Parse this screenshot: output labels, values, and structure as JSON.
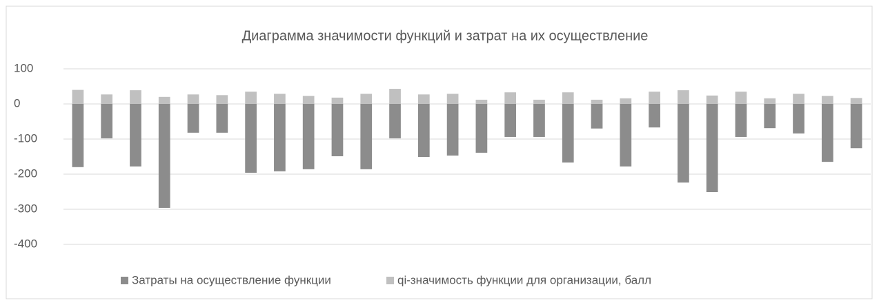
{
  "chart_data": {
    "type": "bar",
    "title": "Диаграмма значимости функций и затрат на их осуществление",
    "categories": [
      null,
      null,
      null,
      null,
      null,
      null,
      null,
      null,
      null,
      null,
      null,
      null,
      null,
      null,
      null,
      null,
      null,
      null,
      null,
      null,
      null,
      null,
      null,
      null,
      null,
      null,
      null,
      null
    ],
    "series": [
      {
        "name": "Затраты на осуществление функции",
        "color": "#8c8c8c",
        "values": [
          -180,
          -98,
          -178,
          -296,
          -82,
          -82,
          -196,
          -192,
          -186,
          -149,
          -186,
          -98,
          -151,
          -147,
          -139,
          -94,
          -94,
          -167,
          -70,
          -178,
          -67,
          -224,
          -251,
          -94,
          -69,
          -84,
          -165,
          -126
        ]
      },
      {
        "name": "qi-значимость функции для организации, балл",
        "color": "#c0c0c0",
        "values": [
          40,
          27,
          39,
          20,
          27,
          25,
          35,
          29,
          23,
          18,
          29,
          43,
          27,
          29,
          12,
          33,
          12,
          33,
          12,
          16,
          35,
          39,
          24,
          35,
          16,
          29,
          23,
          17
        ]
      }
    ],
    "ylim": [
      -400,
      100
    ],
    "yticks": [
      -400,
      -300,
      -200,
      -100,
      0,
      100
    ],
    "grid": true,
    "legend": "bottom"
  }
}
